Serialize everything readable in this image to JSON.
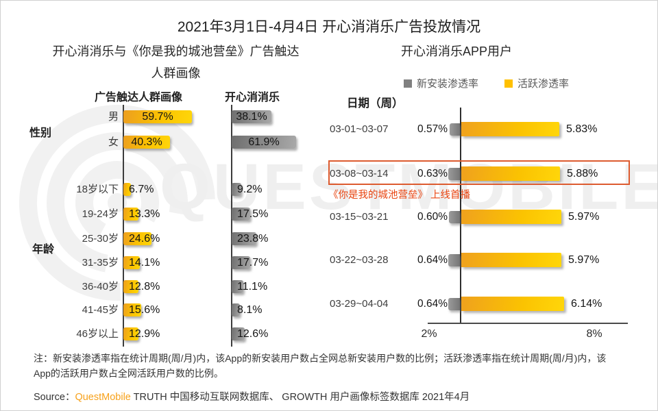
{
  "title": "2021年3月1日-4月4日 开心消消乐广告投放情况",
  "sections": {
    "left": {
      "subtitle_line1": "开心消消乐与《你是我的城池营垒》广告触达",
      "subtitle_line2": "人群画像"
    },
    "right": {
      "subtitle": "开心消消乐APP用户"
    }
  },
  "chart_data": [
    {
      "id": "ad-audience-profile",
      "type": "bar",
      "title": "开心消消乐与《你是我的城池营垒》广告触达人群画像",
      "orientation": "horizontal",
      "unit": "%",
      "categories": [
        "男",
        "女",
        "18岁以下",
        "19-24岁",
        "25-30岁",
        "31-35岁",
        "36-40岁",
        "41-45岁",
        "46岁以上"
      ],
      "groups": [
        {
          "label": "性别"
        },
        {
          "label": "年龄"
        }
      ],
      "series": [
        {
          "name": "广告触达人群画像",
          "color": "#FFC000",
          "values": [
            59.7,
            40.3,
            6.7,
            13.3,
            24.6,
            14.1,
            12.8,
            15.6,
            12.9
          ],
          "labels": [
            "59.7%",
            "40.3%",
            "6.7%",
            "13.3%",
            "24.6%",
            "14.1%",
            "12.8%",
            "15.6%",
            "12.9%"
          ]
        },
        {
          "name": "开心消消乐",
          "color": "#8C8C8C",
          "values": [
            38.1,
            61.9,
            9.2,
            17.5,
            23.8,
            17.7,
            11.1,
            8.1,
            12.6
          ],
          "labels": [
            "38.1%",
            "61.9%",
            "9.2%",
            "17.5%",
            "23.8%",
            "17.7%",
            "11.1%",
            "8.1%",
            "12.6%"
          ]
        }
      ]
    },
    {
      "id": "app-user-penetration",
      "type": "bar",
      "title": "开心消消乐APP用户",
      "orientation": "horizontal",
      "unit": "%",
      "x_axis_label": "日期（周）",
      "categories": [
        "03-01~03-07",
        "03-08~03-14",
        "03-15~03-21",
        "03-22~03-28",
        "03-29~04-04"
      ],
      "series": [
        {
          "name": "新安装渗透率",
          "color": "#808080",
          "values": [
            0.57,
            0.63,
            0.6,
            0.64,
            0.64
          ],
          "labels": [
            "0.57%",
            "0.63%",
            "0.60%",
            "0.64%",
            "0.64%"
          ]
        },
        {
          "name": "活跃渗透率",
          "color": "#FFC000",
          "values": [
            5.83,
            5.88,
            5.97,
            5.97,
            6.14
          ],
          "labels": [
            "5.83%",
            "5.88%",
            "5.97%",
            "5.97%",
            "6.14%"
          ]
        }
      ],
      "axis_ticks": [
        "2%",
        "8%"
      ],
      "highlight": {
        "category": "03-08~03-14",
        "annotation": "《你是我的城池营垒》 上线首播",
        "border_color": "#DD5B2F"
      }
    }
  ],
  "footer": {
    "note": "注：新安装渗透率指在统计周期(周/月)内，该App的新安装用户数占全网总新安装用户数的比例；活跃渗透率指在统计周期(周/月)内，该App的活跃用户数占全网活跃用户数的比例。",
    "source_prefix": "Source：",
    "source_brand": "QuestMobile",
    "source_rest": " TRUTH 中国移动互联网数据库、 GROWTH 用户画像标签数据库 2021年4月"
  },
  "watermark": {
    "text": "QUESTMOBILE"
  },
  "colors": {
    "bar_yellow": "#FFC000",
    "bar_gray": "#808080",
    "highlight_border": "#DD5B2F",
    "annotation_text": "#E8430F",
    "brand_orange": "#F7A11A"
  }
}
